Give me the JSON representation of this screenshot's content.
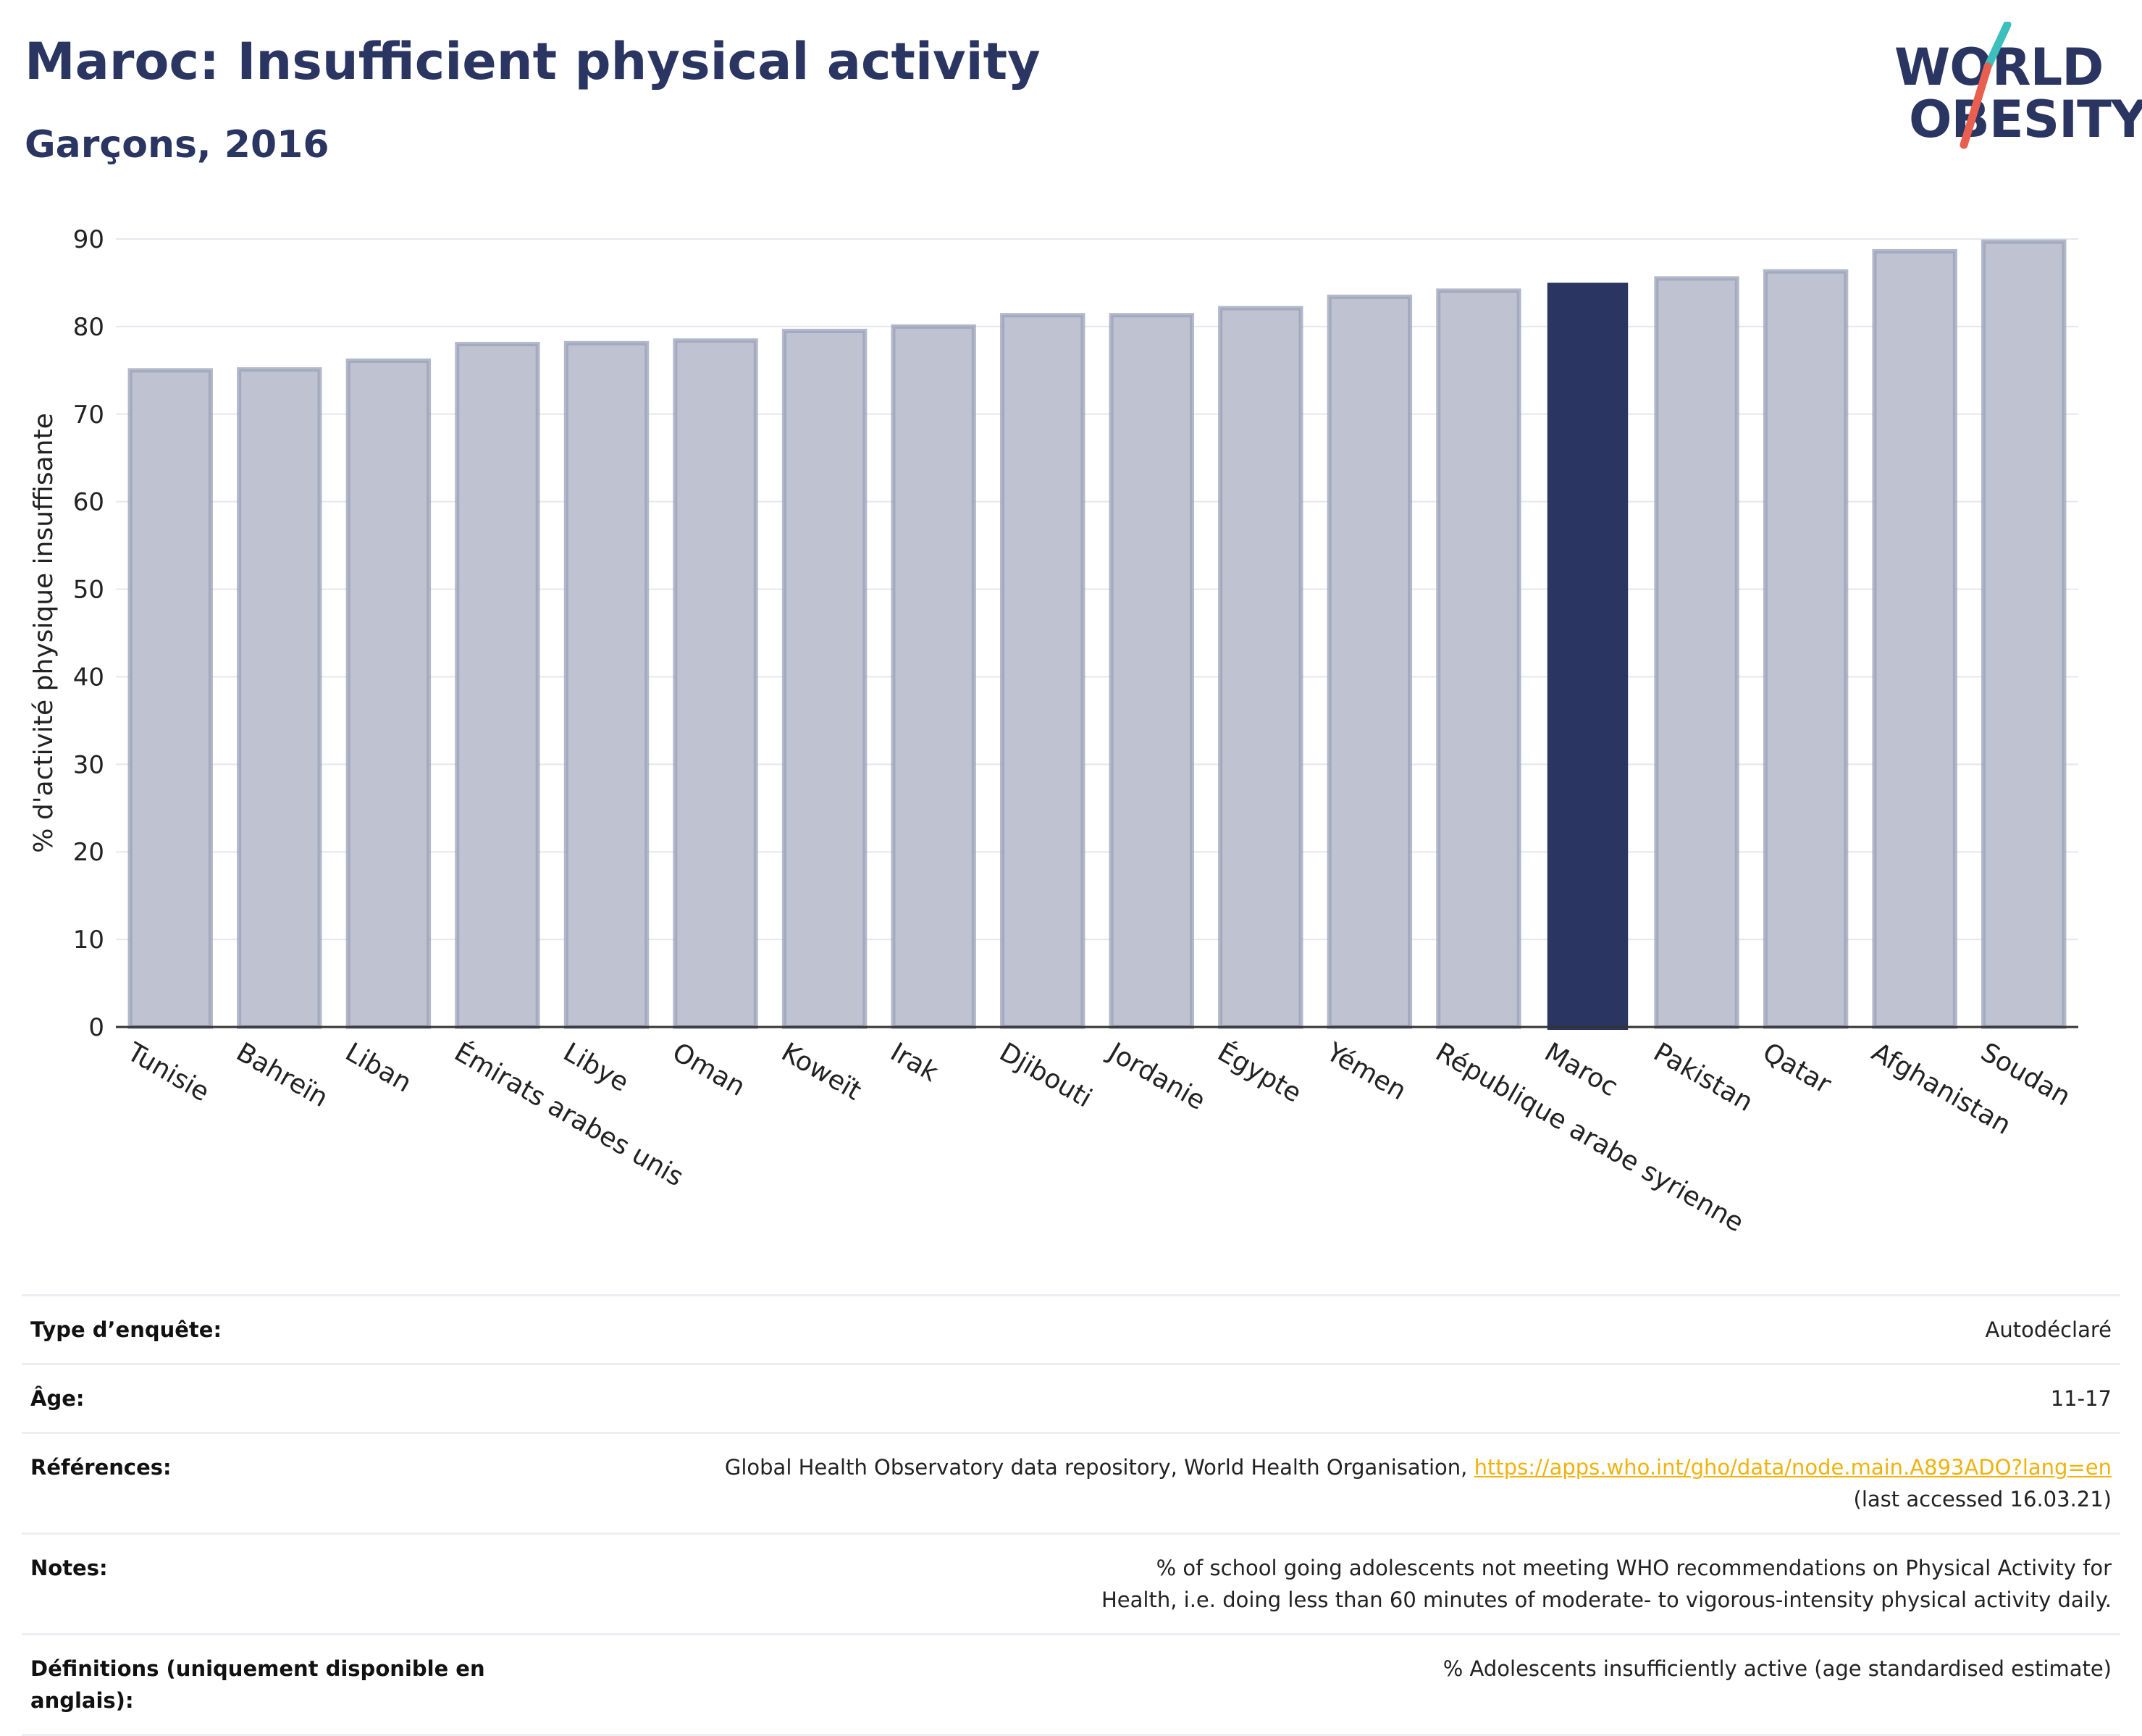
{
  "header": {
    "title": "Maroc: Insufficient physical activity",
    "subtitle": "Garçons, 2016"
  },
  "logo": {
    "line1_before": "W",
    "line1_o": "O",
    "line1_after": "RLD",
    "line2_o": "O",
    "line2_after": "BESITY",
    "slash_colors": [
      "#3cbfbd",
      "#e85f4f"
    ]
  },
  "chart_data": {
    "type": "bar",
    "title": "Maroc: Insufficient physical activity",
    "subtitle": "Garçons, 2016",
    "xlabel": "",
    "ylabel": "% d'activité physique insuffisante",
    "ylim": [
      0,
      90
    ],
    "yticks": [
      0,
      10,
      20,
      30,
      40,
      50,
      60,
      70,
      80,
      90
    ],
    "grid": true,
    "highlight": "Maroc",
    "colors": {
      "bar": "#bfc2d0",
      "bar_edge": "#9aa0b8",
      "highlight": "#2a3561"
    },
    "categories": [
      "Tunisie",
      "Bahreïn",
      "Liban",
      "Émirats arabes unis",
      "Libye",
      "Oman",
      "Koweït",
      "Irak",
      "Djibouti",
      "Jordanie",
      "Égypte",
      "Yémen",
      "République arabe syrienne",
      "Maroc",
      "Pakistan",
      "Qatar",
      "Afghanistan",
      "Soudan"
    ],
    "values": [
      75.0,
      75.1,
      76.1,
      78.0,
      78.1,
      78.4,
      79.5,
      80.0,
      81.3,
      81.3,
      82.1,
      83.4,
      84.1,
      85.0,
      85.5,
      86.3,
      88.6,
      89.7
    ]
  },
  "info": {
    "rows": [
      {
        "label": "Type d’enquête:",
        "value": "Autodéclaré"
      },
      {
        "label": "Âge:",
        "value": "11-17"
      },
      {
        "label": "Références:",
        "value": "Global Health Observatory data repository, World Health Organisation, ",
        "link": "https://apps.who.int/gho/data/node.main.A893ADO?lang=en",
        "value_after": "(last accessed 16.03.21)"
      },
      {
        "label": "Notes:",
        "value": "% of school going adolescents not meeting WHO recommendations on Physical Activity for Health, i.e. doing less than 60 minutes of moderate- to vigorous-intensity physical activity daily."
      },
      {
        "label": "Définitions (uniquement disponible en anglais):",
        "value": "% Adolescents insufficiently active (age standardised estimate)"
      }
    ]
  }
}
